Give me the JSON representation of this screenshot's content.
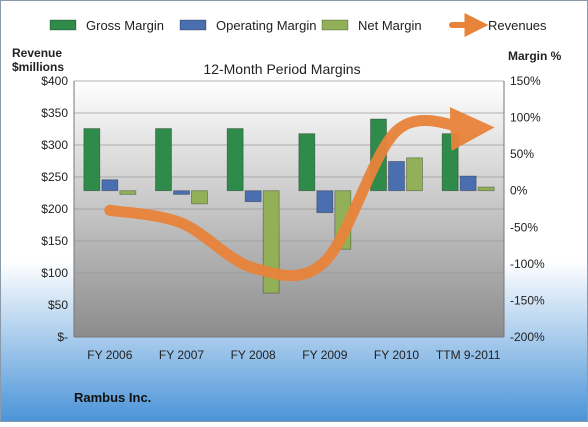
{
  "colors": {
    "gross": "#2e8b4a",
    "operating": "#4a6fb0",
    "net": "#92b058",
    "revenue": "#e8833a",
    "bg_top": "#ffffff",
    "bg_bottom": "#4b94d8"
  },
  "legend": [
    {
      "key": "gross",
      "label": "Gross Margin"
    },
    {
      "key": "operating",
      "label": "Operating Margin"
    },
    {
      "key": "net",
      "label": "Net Margin"
    },
    {
      "key": "revenue",
      "label": "Revenues"
    }
  ],
  "chart_data": {
    "type": "bar",
    "title": "12-Month Period Margins",
    "ylabel_left": [
      "Revenue",
      "$millions"
    ],
    "ylabel_right": "Margin %",
    "footer": "Rambus Inc.",
    "categories": [
      "FY 2006",
      "FY 2007",
      "FY 2008",
      "FY 2009",
      "FY 2010",
      "TTM 9-2011"
    ],
    "left_axis": {
      "min": 0,
      "max": 400,
      "step": 50,
      "tick_labels": [
        "$-",
        "$50",
        "$100",
        "$150",
        "$200",
        "$250",
        "$300",
        "$350",
        "$400"
      ]
    },
    "right_axis": {
      "min": -200,
      "max": 150,
      "step": 50,
      "tick_labels": [
        "-200%",
        "-150%",
        "-100%",
        "-50%",
        "0%",
        "50%",
        "100%",
        "150%"
      ]
    },
    "series": [
      {
        "key": "gross",
        "name": "Gross Margin",
        "axis": "right",
        "values": [
          85,
          85,
          85,
          78,
          98,
          78
        ]
      },
      {
        "key": "operating",
        "name": "Operating Margin",
        "axis": "right",
        "values": [
          15,
          -5,
          -15,
          -30,
          40,
          20
        ]
      },
      {
        "key": "net",
        "name": "Net Margin",
        "axis": "right",
        "values": [
          -5,
          -18,
          -140,
          -80,
          45,
          5
        ]
      },
      {
        "key": "revenue",
        "name": "Revenues",
        "type": "line",
        "axis": "left",
        "values": [
          198,
          178,
          108,
          118,
          322,
          326
        ]
      }
    ],
    "grid": true,
    "legend_position": "top"
  }
}
